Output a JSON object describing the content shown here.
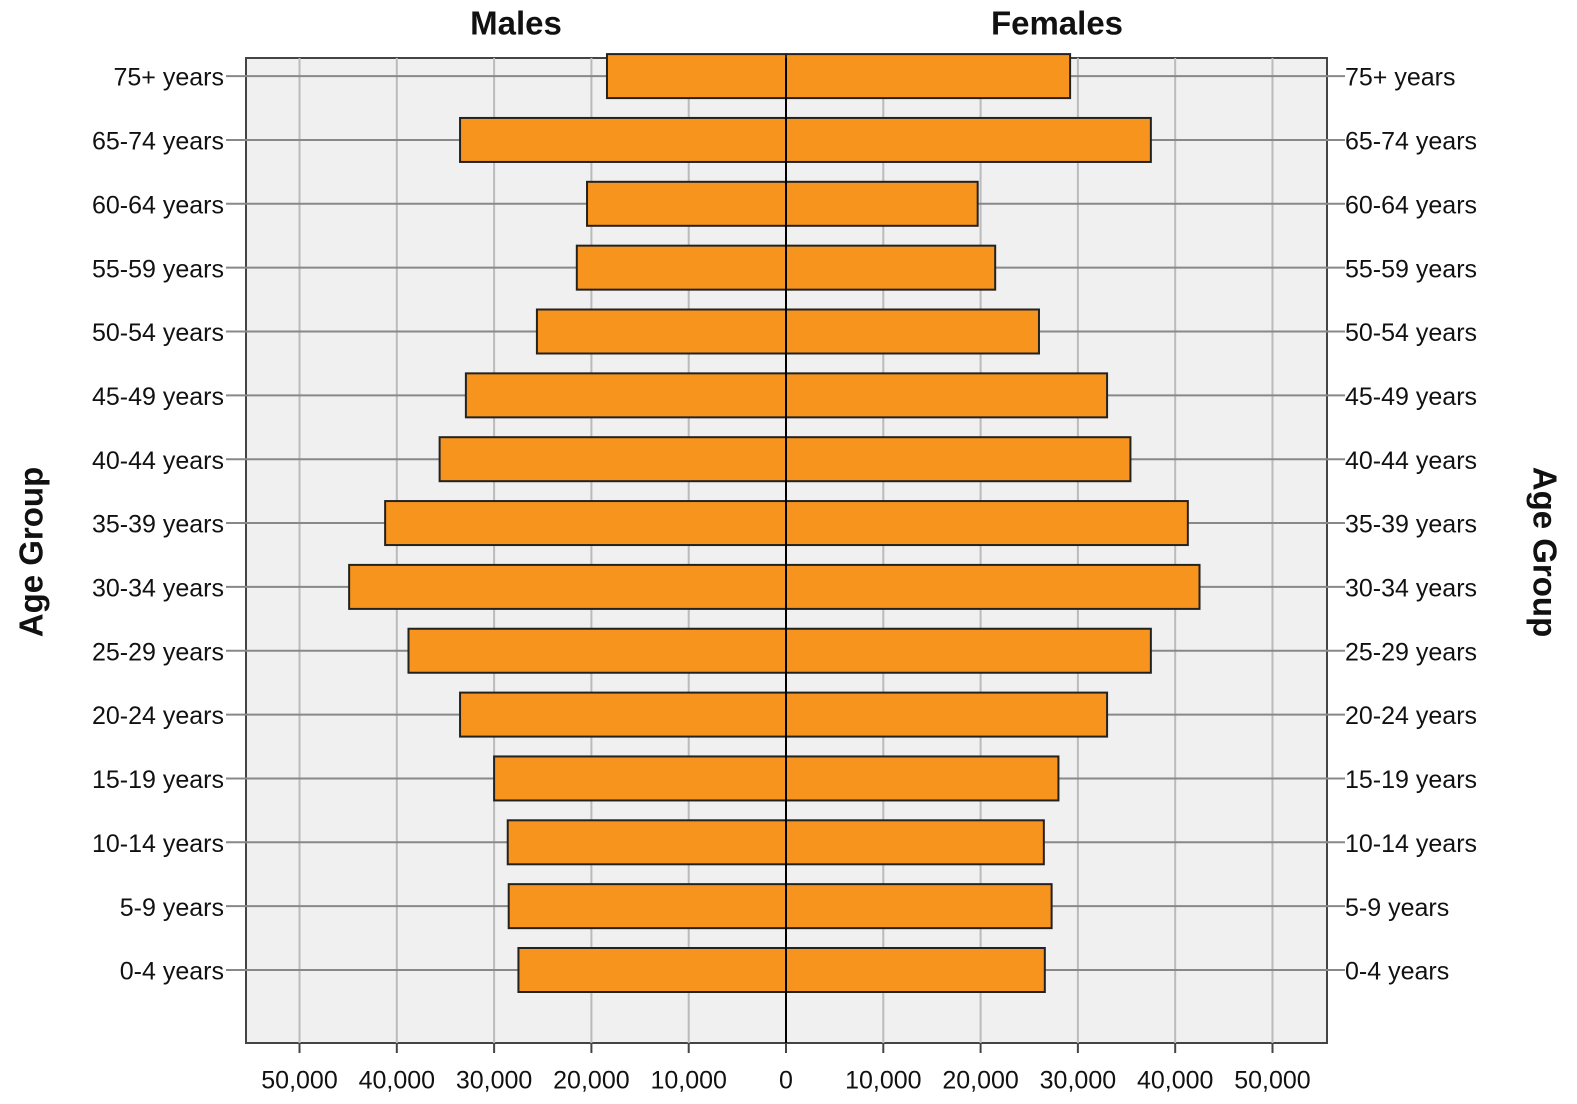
{
  "chart_data": {
    "type": "pyramid",
    "ylabel": "Age Group",
    "categories": [
      "0-4 years",
      "5-9 years",
      "10-14 years",
      "15-19 years",
      "20-24 years",
      "25-29 years",
      "30-34 years",
      "35-39 years",
      "40-44 years",
      "45-49 years",
      "50-54 years",
      "55-59 years",
      "60-64 years",
      "65-74 years",
      "75+ years"
    ],
    "series": [
      {
        "name": "Males",
        "color": "#f7941d",
        "values": [
          27500,
          28500,
          28600,
          30000,
          33500,
          38800,
          44900,
          41200,
          35600,
          32900,
          25600,
          21500,
          20450,
          33500,
          18400
        ]
      },
      {
        "name": "Females",
        "color": "#f7941d",
        "values": [
          26600,
          27300,
          26500,
          28000,
          33000,
          37500,
          42500,
          41300,
          35400,
          33000,
          26000,
          21500,
          19700,
          37500,
          29200
        ]
      }
    ],
    "xlim": [
      0,
      55500
    ],
    "xticks": [
      0,
      {
        "value": 10000,
        "label": "10,000"
      },
      {
        "value": 20000,
        "label": "20,000"
      },
      {
        "value": 30000,
        "label": "30,000"
      },
      {
        "value": 40000,
        "label": "40,000"
      },
      {
        "value": 50000,
        "label": "50,000"
      }
    ],
    "grid": true
  }
}
